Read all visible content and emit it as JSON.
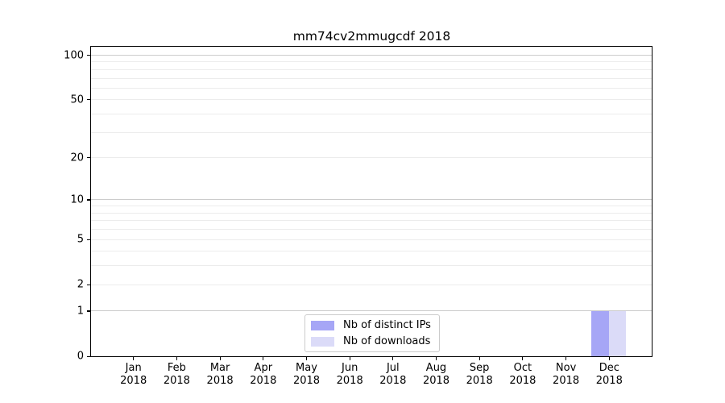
{
  "chart_data": {
    "type": "bar",
    "title": "mm74cv2mmugcdf 2018",
    "categories": [
      "Jan",
      "Feb",
      "Mar",
      "Apr",
      "May",
      "Jun",
      "Jul",
      "Aug",
      "Sep",
      "Oct",
      "Nov",
      "Dec"
    ],
    "tick_year": "2018",
    "series": [
      {
        "name": "Nb of distinct IPs",
        "color": "#a6a6f6",
        "values": [
          0,
          0,
          0,
          0,
          0,
          0,
          0,
          0,
          0,
          0,
          0,
          1
        ]
      },
      {
        "name": "Nb of downloads",
        "color": "#dbdbf8",
        "values": [
          0,
          0,
          0,
          0,
          0,
          0,
          0,
          0,
          0,
          0,
          0,
          1
        ]
      }
    ],
    "y_scale": "log1p",
    "y_ticks": [
      100,
      50,
      20,
      10,
      5,
      2,
      1,
      0
    ],
    "y_gridlines_major": [
      1,
      10,
      100
    ],
    "y_gridlines_minor": [
      2,
      3,
      4,
      5,
      6,
      7,
      8,
      9,
      20,
      30,
      40,
      50,
      60,
      70,
      80,
      90
    ],
    "ylim": [
      0,
      113
    ],
    "grid": true,
    "legend_position": "lower center inside",
    "colors": {
      "major_grid": "#cccccc",
      "minor_grid": "#ececec",
      "spine": "#000000",
      "text": "#000000",
      "background": "#ffffff"
    }
  }
}
